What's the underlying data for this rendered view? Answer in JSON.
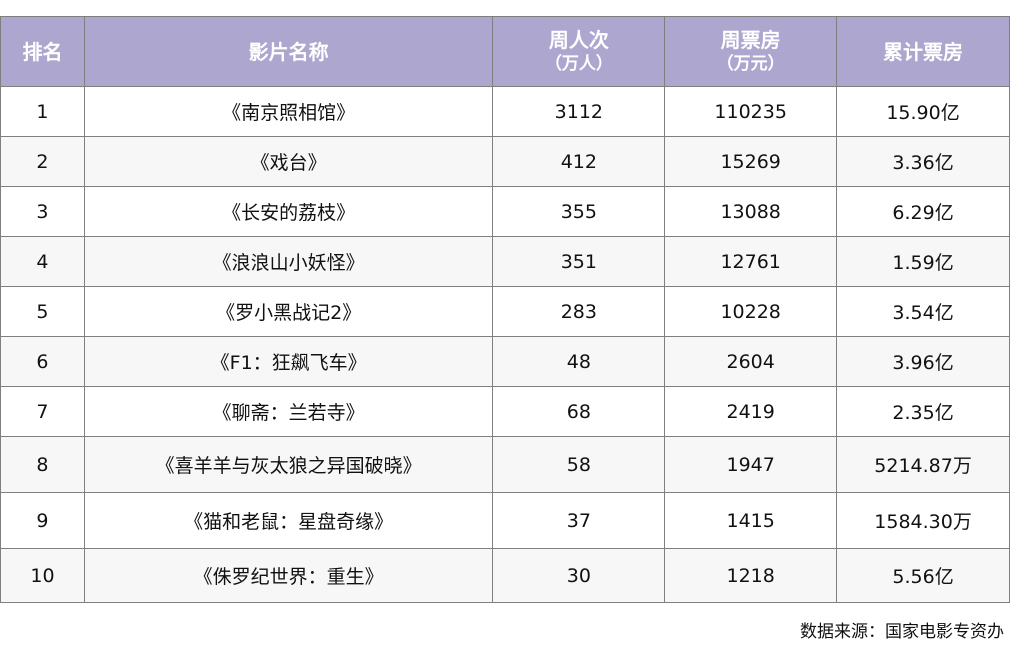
{
  "header": {
    "rank": "排名",
    "title": "影片名称",
    "viewers": "周人次",
    "viewers_unit": "（万人）",
    "weekly": "周票房",
    "weekly_unit": "（万元）",
    "total": "累计票房"
  },
  "rows": [
    {
      "rank": "1",
      "title": "《南京照相馆》",
      "viewers": "3112",
      "weekly": "110235",
      "total": "15.90亿"
    },
    {
      "rank": "2",
      "title": "《戏台》",
      "viewers": "412",
      "weekly": "15269",
      "total": "3.36亿"
    },
    {
      "rank": "3",
      "title": "《长安的荔枝》",
      "viewers": "355",
      "weekly": "13088",
      "total": "6.29亿"
    },
    {
      "rank": "4",
      "title": "《浪浪山小妖怪》",
      "viewers": "351",
      "weekly": "12761",
      "total": "1.59亿"
    },
    {
      "rank": "5",
      "title": "《罗小黑战记2》",
      "viewers": "283",
      "weekly": "10228",
      "total": "3.54亿"
    },
    {
      "rank": "6",
      "title": "《F1：狂飙飞车》",
      "viewers": "48",
      "weekly": "2604",
      "total": "3.96亿"
    },
    {
      "rank": "7",
      "title": "《聊斋：兰若寺》",
      "viewers": "68",
      "weekly": "2419",
      "total": "2.35亿"
    },
    {
      "rank": "8",
      "title": "《喜羊羊与灰太狼之异国破晓》",
      "viewers": "58",
      "weekly": "1947",
      "total": "5214.87万"
    },
    {
      "rank": "9",
      "title": "《猫和老鼠：星盘奇缘》",
      "viewers": "37",
      "weekly": "1415",
      "total": "1584.30万"
    },
    {
      "rank": "10",
      "title": "《侏罗纪世界：重生》",
      "viewers": "30",
      "weekly": "1218",
      "total": "5.56亿"
    }
  ],
  "source": "数据来源：国家电影专资办",
  "colors": {
    "header_bg": "#ADA6CE",
    "alt_row": "#F7F7F7"
  }
}
